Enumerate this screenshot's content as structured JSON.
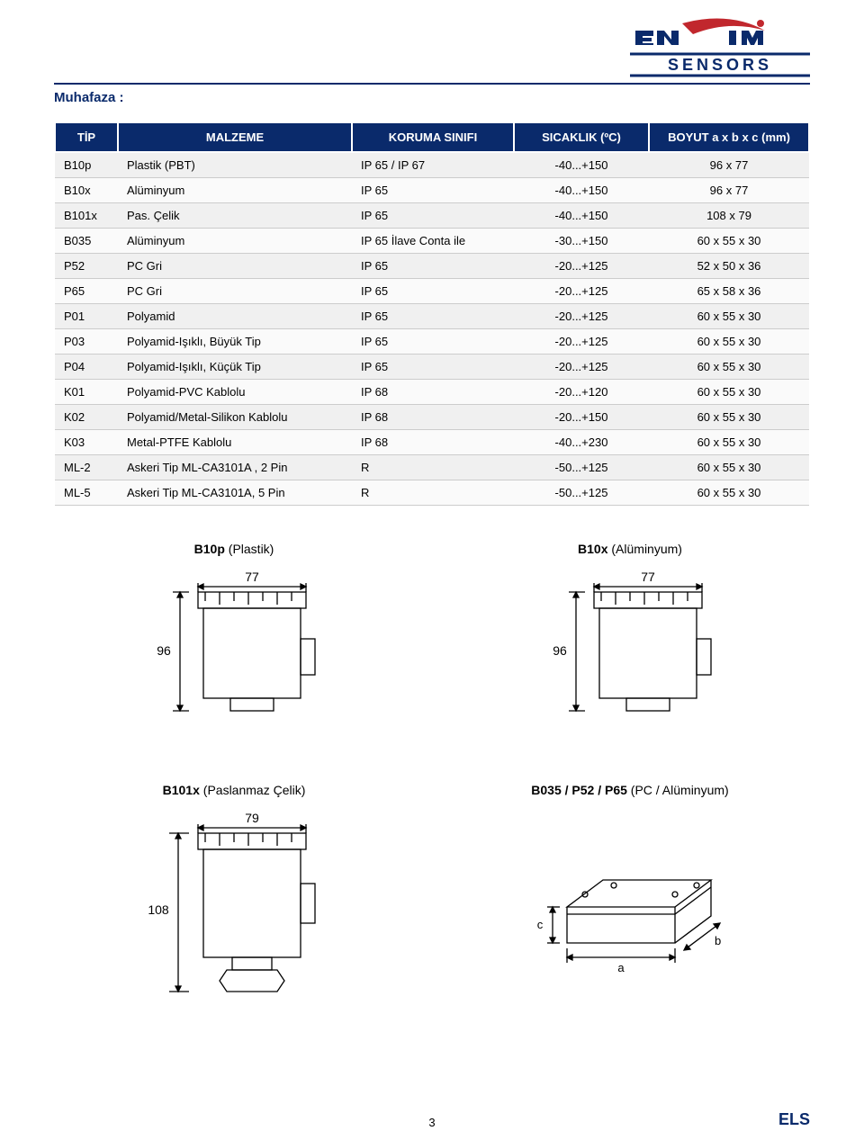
{
  "logo": {
    "brand_top": "Ensim",
    "brand_bottom": "SENSORS",
    "color_red": "#c1272d",
    "color_navy": "#0a2a6b"
  },
  "section_title": "Muhafaza :",
  "colors": {
    "header_bg": "#0a2a6b",
    "header_fg": "#ffffff",
    "row_odd": "#f0f0f0",
    "row_even": "#fafafa",
    "stroke": "#000000"
  },
  "table": {
    "columns": [
      "TİP",
      "MALZEME",
      "KORUMA SINIFI",
      "SICAKLIK (ºC)",
      "BOYUT  a x b x c  (mm)"
    ],
    "rows": [
      [
        "B10p",
        "Plastik (PBT)",
        "IP 65 / IP 67",
        "-40...+150",
        "96 x 77"
      ],
      [
        "B10x",
        "Alüminyum",
        "IP 65",
        "-40...+150",
        "96 x 77"
      ],
      [
        "B101x",
        "Pas. Çelik",
        "IP 65",
        "-40...+150",
        "108 x 79"
      ],
      [
        "B035",
        "Alüminyum",
        "IP 65 İlave Conta ile",
        "-30...+150",
        "60 x 55 x 30"
      ],
      [
        "P52",
        "PC Gri",
        "IP 65",
        "-20...+125",
        "52 x 50 x 36"
      ],
      [
        "P65",
        "PC Gri",
        "IP 65",
        "-20...+125",
        "65 x 58 x 36"
      ],
      [
        "P01",
        "Polyamid",
        "IP 65",
        "-20...+125",
        "60 x 55 x 30"
      ],
      [
        "P03",
        "Polyamid-Işıklı, Büyük Tip",
        "IP 65",
        "-20...+125",
        "60 x 55 x 30"
      ],
      [
        "P04",
        "Polyamid-Işıklı, Küçük Tip",
        "IP 65",
        "-20...+125",
        "60 x 55 x 30"
      ],
      [
        "K01",
        "Polyamid-PVC Kablolu",
        "IP 68",
        "-20...+120",
        "60 x 55 x 30"
      ],
      [
        "K02",
        "Polyamid/Metal-Silikon Kablolu",
        "IP 68",
        "-20...+150",
        "60 x 55 x 30"
      ],
      [
        "K03",
        "Metal-PTFE Kablolu",
        "IP 68",
        "-40...+230",
        "60 x 55 x 30"
      ],
      [
        "ML-2",
        "Askeri Tip ML-CA3101A , 2 Pin",
        "R",
        "-50...+125",
        "60 x 55 x 30"
      ],
      [
        "ML-5",
        "Askeri Tip ML-CA3101A, 5 Pin",
        "R",
        "-50...+125",
        "60 x 55 x 30"
      ]
    ]
  },
  "diagrams": {
    "b10p": {
      "title_bold": "B10p",
      "title_rest": " (Plastik)",
      "width_label": "77",
      "height_label": "96"
    },
    "b10x": {
      "title_bold": "B10x",
      "title_rest": " (Alüminyum)",
      "width_label": "77",
      "height_label": "96"
    },
    "b101x": {
      "title_bold": "B101x",
      "title_rest": " (Paslanmaz Çelik)",
      "width_label": "79",
      "height_label": "108"
    },
    "b035": {
      "title_bold": "B035 / P52 / P65",
      "title_rest": " (PC / Alüminyum)",
      "labels": {
        "a": "a",
        "b": "b",
        "c": "c"
      }
    }
  },
  "footer": {
    "page_num": "3",
    "brand": "ELS"
  }
}
